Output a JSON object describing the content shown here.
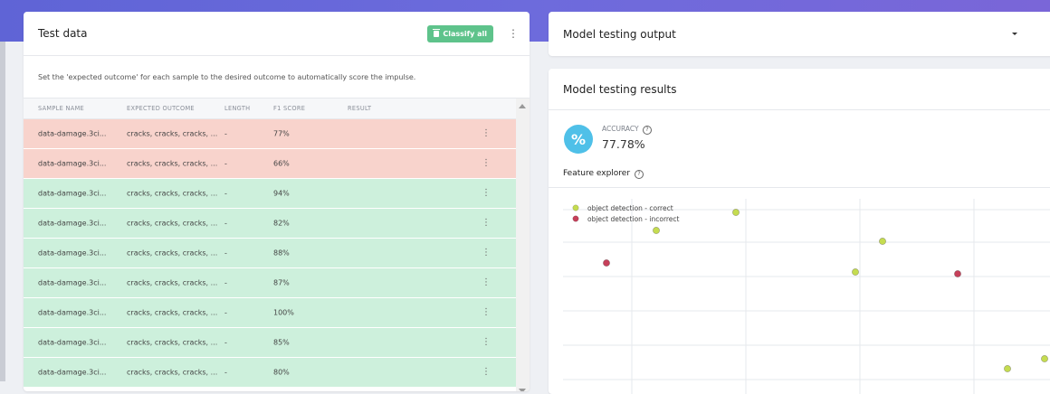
{
  "test_data": {
    "title": "Test data",
    "classify_label": "Classify all",
    "description": "Set the 'expected outcome' for each sample to the desired outcome to automatically score the impulse.",
    "columns": [
      "SAMPLE NAME",
      "EXPECTED OUTCOME",
      "LENGTH",
      "F1 SCORE",
      "RESULT"
    ],
    "rows": [
      {
        "name": "data-damage.3ci...",
        "expected": "cracks, cracks, cracks, ...",
        "length": "-",
        "f1": "77%",
        "status": "incorrect"
      },
      {
        "name": "data-damage.3ci...",
        "expected": "cracks, cracks, cracks, ...",
        "length": "-",
        "f1": "66%",
        "status": "incorrect"
      },
      {
        "name": "data-damage.3ci...",
        "expected": "cracks, cracks, cracks, ...",
        "length": "-",
        "f1": "94%",
        "status": "correct"
      },
      {
        "name": "data-damage.3ci...",
        "expected": "cracks, cracks, cracks, ...",
        "length": "-",
        "f1": "82%",
        "status": "correct"
      },
      {
        "name": "data-damage.3ci...",
        "expected": "cracks, cracks, cracks, ...",
        "length": "-",
        "f1": "88%",
        "status": "correct"
      },
      {
        "name": "data-damage.3ci...",
        "expected": "cracks, cracks, cracks, ...",
        "length": "-",
        "f1": "87%",
        "status": "correct"
      },
      {
        "name": "data-damage.3ci...",
        "expected": "cracks, cracks, cracks, ...",
        "length": "-",
        "f1": "100%",
        "status": "correct"
      },
      {
        "name": "data-damage.3ci...",
        "expected": "cracks, cracks, cracks, ...",
        "length": "-",
        "f1": "85%",
        "status": "correct"
      },
      {
        "name": "data-damage.3ci...",
        "expected": "cracks, cracks, cracks, ...",
        "length": "-",
        "f1": "80%",
        "status": "correct"
      }
    ]
  },
  "output": {
    "title": "Model testing output"
  },
  "results": {
    "title": "Model testing results",
    "accuracy_label": "ACCURACY",
    "accuracy_value": "77.78%",
    "feature_explorer_label": "Feature explorer"
  },
  "colors": {
    "correct": "#c5dc50",
    "incorrect": "#c6405a",
    "accent": "#4fc0e8",
    "button": "#5ec38b"
  },
  "chart_data": {
    "type": "scatter",
    "title": "",
    "xlabel": "",
    "ylabel": "",
    "legend_position": "top-left",
    "grid": true,
    "xlim": [
      0,
      540
    ],
    "ylim": [
      0,
      200
    ],
    "series": [
      {
        "name": "object detection - correct",
        "color": "#c5dc50",
        "points": [
          [
            103,
            165
          ],
          [
            191,
            185
          ],
          [
            353,
            153
          ],
          [
            323,
            119
          ],
          [
            491,
            12
          ],
          [
            532,
            23
          ]
        ]
      },
      {
        "name": "object detection - incorrect",
        "color": "#c6405a",
        "points": [
          [
            48,
            129
          ],
          [
            436,
            117
          ]
        ]
      }
    ]
  }
}
